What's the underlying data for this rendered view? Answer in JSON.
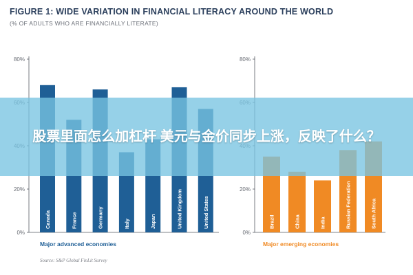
{
  "title": "FIGURE 1: WIDE VARIATION IN FINANCIAL LITERACY AROUND THE WORLD",
  "subtitle": "(% OF ADULTS WHO ARE FINANCIALLY LITERATE)",
  "overlay_text": "股票里面怎么加杠杆 美元与金价同步上涨，反映了什么？",
  "source": "Source: S&P Global FinLit Survey",
  "colors": {
    "advanced_bar": "#1f5f96",
    "emerging_bar": "#f08a24",
    "advanced_label": "#1f5f96",
    "emerging_label": "#f08a24",
    "axis": "#555a63"
  },
  "chart_data": [
    {
      "type": "bar",
      "group_label": "Major advanced economies",
      "categories": [
        "Canada",
        "France",
        "Germany",
        "Italy",
        "Japan",
        "United Kingdom",
        "United States"
      ],
      "values": [
        68,
        52,
        66,
        37,
        43,
        67,
        57
      ],
      "yticks": [
        "0%",
        "20%",
        "40%",
        "60%",
        "80%"
      ],
      "ylim": [
        0,
        80
      ]
    },
    {
      "type": "bar",
      "group_label": "Major emerging economies",
      "categories": [
        "Brazil",
        "China",
        "India",
        "Russian Federation",
        "South Africa"
      ],
      "values": [
        35,
        28,
        24,
        38,
        42
      ],
      "yticks": [
        "0%",
        "20%",
        "40%",
        "60%",
        "80%"
      ],
      "ylim": [
        0,
        80
      ]
    }
  ]
}
